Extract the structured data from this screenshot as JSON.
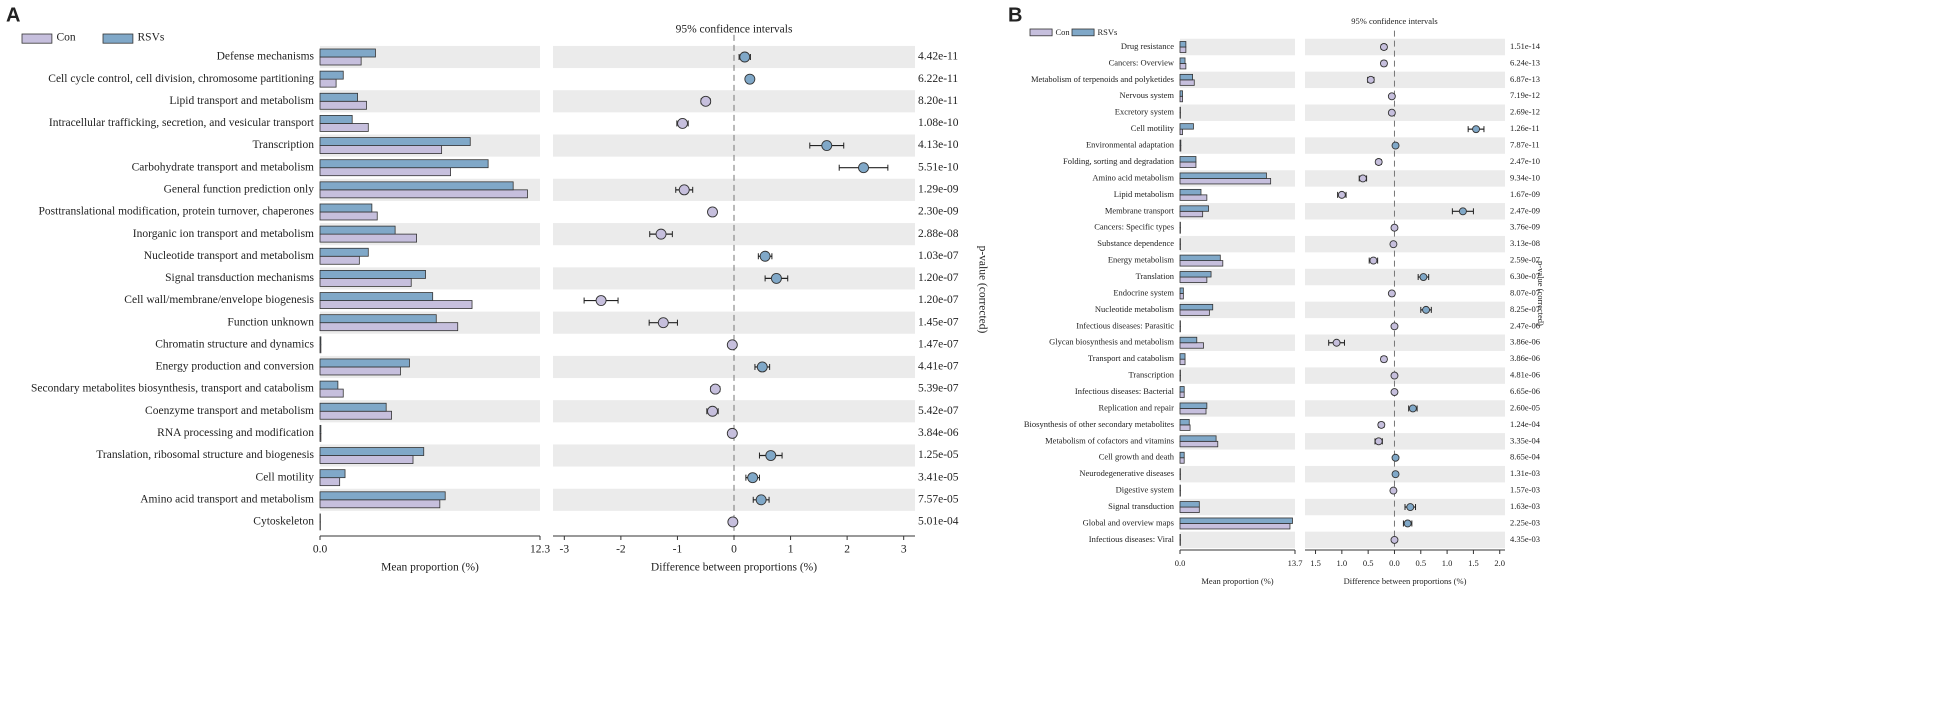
{
  "chart_data": [
    {
      "type": "extended_error_bar",
      "panel_label": "A",
      "title": "95% confidence intervals",
      "categories": [
        "Defense mechanisms",
        "Cell cycle control, cell division, chromosome partitioning",
        "Lipid transport and metabolism",
        "Intracellular trafficking, secretion, and vesicular transport",
        "Transcription",
        "Carbohydrate transport and metabolism",
        "General function prediction only",
        "Posttranslational modification, protein turnover, chaperones",
        "Inorganic ion transport and metabolism",
        "Nucleotide transport and metabolism",
        "Signal transduction mechanisms",
        "Cell wall/membrane/envelope biogenesis",
        "Function unknown",
        "Chromatin structure and dynamics",
        "Energy production and conversion",
        "Secondary metabolites biosynthesis, transport and catabolism",
        "Coenzyme transport and metabolism",
        "RNA processing and modification",
        "Translation, ribosomal structure and biogenesis",
        "Cell motility",
        "Amino acid transport and metabolism",
        "Cytoskeleton"
      ],
      "series": [
        {
          "name": "Con",
          "color": "#c6bfdd",
          "values": [
            2.3,
            0.9,
            2.6,
            2.7,
            6.8,
            7.3,
            11.6,
            3.2,
            5.4,
            2.2,
            5.1,
            8.5,
            7.7,
            0.05,
            4.5,
            1.3,
            4.0,
            0.05,
            5.2,
            1.1,
            6.7,
            0.02
          ]
        },
        {
          "name": "RSVs",
          "color": "#80a8c8",
          "values": [
            3.1,
            1.3,
            2.1,
            1.8,
            8.4,
            9.4,
            10.8,
            2.9,
            4.2,
            2.7,
            5.9,
            6.3,
            6.5,
            0.05,
            5.0,
            1.0,
            3.7,
            0.05,
            5.8,
            1.4,
            7.0,
            0.02
          ]
        }
      ],
      "differences": [
        0.19,
        0.28,
        -0.5,
        -0.91,
        1.64,
        2.29,
        -0.88,
        -0.38,
        -1.29,
        0.55,
        0.75,
        -2.35,
        -1.25,
        -0.03,
        0.5,
        -0.33,
        -0.38,
        -0.03,
        0.65,
        0.33,
        0.48,
        -0.02
      ],
      "errors": [
        0.1,
        0.06,
        0.08,
        0.1,
        0.3,
        0.43,
        0.15,
        0.07,
        0.2,
        0.12,
        0.2,
        0.3,
        0.25,
        0.02,
        0.13,
        0.08,
        0.1,
        0.02,
        0.2,
        0.12,
        0.14,
        0.02
      ],
      "p_values": [
        "4.42e-11",
        "6.22e-11",
        "8.20e-11",
        "1.08e-10",
        "4.13e-10",
        "5.51e-10",
        "1.29e-09",
        "2.30e-09",
        "2.88e-08",
        "1.03e-07",
        "1.20e-07",
        "1.20e-07",
        "1.45e-07",
        "1.47e-07",
        "4.41e-07",
        "5.39e-07",
        "5.42e-07",
        "3.84e-06",
        "1.25e-05",
        "3.41e-05",
        "7.57e-05",
        "5.01e-04"
      ],
      "xlim": [
        0,
        12.3
      ],
      "xticks": [
        {
          "value": 0,
          "label": "0.0"
        },
        12.3
      ],
      "x_label": "Mean proportion (%)",
      "diff_xlim": [
        -3.2,
        3.2
      ],
      "diff_xticks": [
        -3,
        -2,
        -1,
        0,
        1,
        2,
        3
      ],
      "diff_x_label": "Difference between proportions (%)",
      "y2_label": "p-value (corrected)"
    },
    {
      "type": "extended_error_bar",
      "panel_label": "B",
      "title": "95% confidence intervals",
      "categories": [
        "Drug resistance",
        "Cancers: Overview",
        "Metabolism of terpenoids and polyketides",
        "Nervous system",
        "Excretory system",
        "Cell motility",
        "Environmental adaptation",
        "Folding, sorting and degradation",
        "Amino acid metabolism",
        "Lipid metabolism",
        "Membrane transport",
        "Cancers: Specific types",
        "Substance dependence",
        "Energy metabolism",
        "Translation",
        "Endocrine system",
        "Nucleotide metabolism",
        "Infectious diseases: Parasitic",
        "Glycan biosynthesis and metabolism",
        "Transport and catabolism",
        "Transcription",
        "Infectious diseases: Bacterial",
        "Replication and repair",
        "Biosynthesis of other secondary metabolites",
        "Metabolism of cofactors and vitamins",
        "Cell growth and death",
        "Neurodegenerative diseases",
        "Digestive system",
        "Signal transduction",
        "Global and overview maps",
        "Infectious diseases: Viral"
      ],
      "series": [
        {
          "name": "Con",
          "color": "#c6bfdd",
          "values": [
            0.7,
            0.7,
            1.7,
            0.3,
            0.05,
            0.3,
            0.1,
            1.9,
            10.8,
            3.2,
            2.7,
            0.05,
            0.05,
            5.1,
            3.2,
            0.4,
            3.5,
            0.05,
            2.8,
            0.6,
            0.05,
            0.5,
            3.1,
            1.2,
            4.5,
            0.5,
            0.05,
            0.05,
            2.3,
            13.1,
            0.05
          ]
        },
        {
          "name": "RSVs",
          "color": "#80a8c8",
          "values": [
            0.7,
            0.6,
            1.5,
            0.3,
            0.05,
            1.6,
            0.1,
            1.9,
            10.3,
            2.5,
            3.4,
            0.05,
            0.05,
            4.8,
            3.7,
            0.4,
            3.9,
            0.05,
            2.0,
            0.6,
            0.05,
            0.5,
            3.2,
            1.1,
            4.3,
            0.5,
            0.05,
            0.05,
            2.3,
            13.4,
            0.05
          ]
        }
      ],
      "differences": [
        -0.2,
        -0.2,
        -0.45,
        -0.05,
        -0.05,
        1.55,
        0.02,
        -0.3,
        -0.6,
        -1.0,
        1.3,
        0.0,
        -0.02,
        -0.4,
        0.55,
        -0.05,
        0.6,
        0.0,
        -1.1,
        -0.2,
        0.0,
        0.0,
        0.35,
        -0.25,
        -0.3,
        0.02,
        0.02,
        -0.02,
        0.3,
        0.25,
        0.0
      ],
      "errors": [
        0.05,
        0.05,
        0.06,
        0.03,
        0.02,
        0.15,
        0.02,
        0.05,
        0.07,
        0.08,
        0.2,
        0.01,
        0.01,
        0.08,
        0.1,
        0.03,
        0.1,
        0.01,
        0.15,
        0.05,
        0.01,
        0.02,
        0.08,
        0.05,
        0.07,
        0.02,
        0.01,
        0.01,
        0.1,
        0.08,
        0.01
      ],
      "p_values": [
        "1.51e-14",
        "6.24e-13",
        "6.87e-13",
        "7.19e-12",
        "2.69e-12",
        "1.26e-11",
        "7.87e-11",
        "2.47e-10",
        "9.34e-10",
        "1.67e-09",
        "2.47e-09",
        "3.76e-09",
        "3.13e-08",
        "2.59e-07",
        "6.30e-07",
        "8.07e-07",
        "8.25e-07",
        "2.47e-06",
        "3.86e-06",
        "3.86e-06",
        "4.81e-06",
        "6.65e-06",
        "2.60e-05",
        "1.24e-04",
        "3.35e-04",
        "8.65e-04",
        "1.31e-03",
        "1.57e-03",
        "1.63e-03",
        "2.25e-03",
        "4.35e-03"
      ],
      "xlim": [
        0,
        13.7
      ],
      "xticks": [
        {
          "value": 0,
          "label": "0.0"
        },
        13.7
      ],
      "x_label": "Mean proportion (%)",
      "diff_xlim": [
        -1.7,
        2.1
      ],
      "diff_xticks": [
        {
          "value": -1.5,
          "label": "1.5"
        },
        {
          "value": -1.0,
          "label": "1.0"
        },
        {
          "value": -0.5,
          "label": "0.5"
        },
        {
          "value": 0,
          "label": "0.0"
        },
        0.5,
        {
          "value": 1.0,
          "label": "1.0"
        },
        1.5,
        {
          "value": 2.0,
          "label": "2.0"
        }
      ],
      "diff_x_label": "Difference between proportions (%)",
      "y2_label": "p-value (corrected)"
    }
  ]
}
